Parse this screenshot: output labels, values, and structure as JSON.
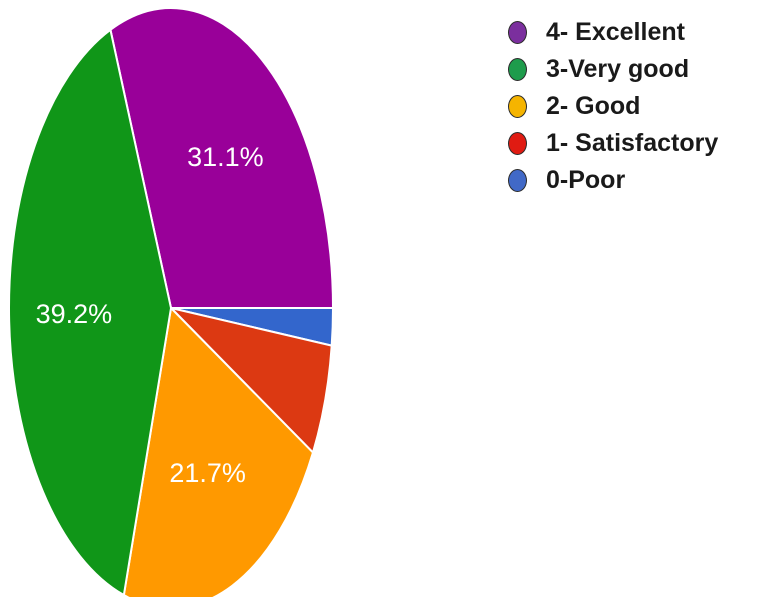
{
  "chart_data": {
    "type": "pie",
    "title": "",
    "slices": [
      {
        "label": "4- Excellent",
        "value": 31.1,
        "display": "31.1%",
        "color": "#990099"
      },
      {
        "label": "0-Poor",
        "value": 2.0,
        "display": "",
        "color": "#3366cc"
      },
      {
        "label": "1- Satisfactory",
        "value": 6.0,
        "display": "",
        "color": "#dc3912"
      },
      {
        "label": "2- Good",
        "value": 21.7,
        "display": "21.7%",
        "color": "#ff9900"
      },
      {
        "label": "3-Very good",
        "value": 39.2,
        "display": "39.2%",
        "color": "#109618"
      }
    ],
    "legend": {
      "placement": "top-right",
      "entries": [
        {
          "label": "4- Excellent",
          "color": "#7b2f9e"
        },
        {
          "label": "3-Very good",
          "color": "#1e9c4c"
        },
        {
          "label": "2- Good",
          "color": "#f5b400"
        },
        {
          "label": "1- Satisfactory",
          "color": "#e01b12"
        },
        {
          "label": "0-Poor",
          "color": "#4169c7"
        }
      ]
    }
  }
}
